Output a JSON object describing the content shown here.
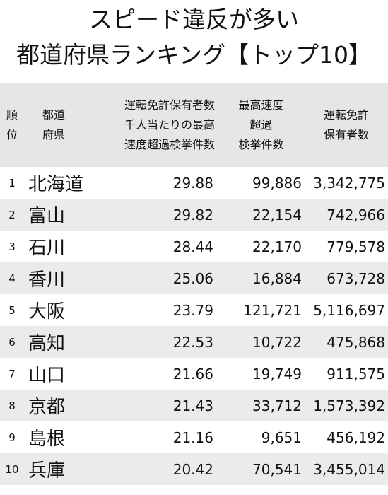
{
  "title": {
    "line1": "スピード違反が多い",
    "line2": "都道府県ランキング【トップ10】"
  },
  "headers": {
    "rank": [
      "順",
      "位"
    ],
    "pref": [
      "都道",
      "府県"
    ],
    "rate": [
      "運転免許保有者数",
      "千人当たりの最高",
      "速度超過検挙件数"
    ],
    "count": [
      "最高速度",
      "超過",
      "検挙件数"
    ],
    "holders": [
      "運転免許",
      "保有者数"
    ]
  },
  "rows": [
    {
      "rank": "1",
      "pref": "北海道",
      "rate": "29.88",
      "count": "99,886",
      "holders": "3,342,775"
    },
    {
      "rank": "2",
      "pref": "富山",
      "rate": "29.82",
      "count": "22,154",
      "holders": "742,966"
    },
    {
      "rank": "3",
      "pref": "石川",
      "rate": "28.44",
      "count": "22,170",
      "holders": "779,578"
    },
    {
      "rank": "4",
      "pref": "香川",
      "rate": "25.06",
      "count": "16,884",
      "holders": "673,728"
    },
    {
      "rank": "5",
      "pref": "大阪",
      "rate": "23.79",
      "count": "121,721",
      "holders": "5,116,697"
    },
    {
      "rank": "6",
      "pref": "高知",
      "rate": "22.53",
      "count": "10,722",
      "holders": "475,868"
    },
    {
      "rank": "7",
      "pref": "山口",
      "rate": "21.66",
      "count": "19,749",
      "holders": "911,575"
    },
    {
      "rank": "8",
      "pref": "京都",
      "rate": "21.43",
      "count": "33,712",
      "holders": "1,573,392"
    },
    {
      "rank": "9",
      "pref": "島根",
      "rate": "21.16",
      "count": "9,651",
      "holders": "456,192"
    },
    {
      "rank": "10",
      "pref": "兵庫",
      "rate": "20.42",
      "count": "70,541",
      "holders": "3,455,014"
    }
  ]
}
